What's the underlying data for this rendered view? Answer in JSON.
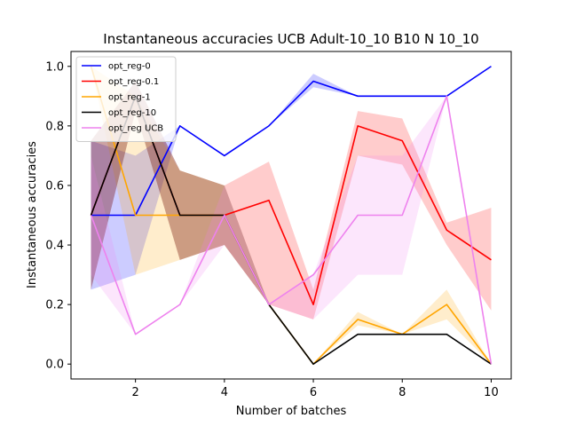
{
  "chart_data": {
    "type": "line",
    "title": "Instantaneous accuracies UCB Adult-10_10 B10 N 10_10",
    "xlabel": "Number of batches",
    "ylabel": "Instantaneous accuracies",
    "xlim": [
      0.55,
      10.45
    ],
    "ylim": [
      -0.05,
      1.05
    ],
    "xticks": [
      2,
      4,
      6,
      8,
      10
    ],
    "yticks": [
      0.0,
      0.2,
      0.4,
      0.6,
      0.8,
      1.0
    ],
    "xtick_labels": [
      "2",
      "4",
      "6",
      "8",
      "10"
    ],
    "ytick_labels": [
      "0.0",
      "0.2",
      "0.4",
      "0.6",
      "0.8",
      "1.0"
    ],
    "grid": false,
    "legend_position": "top-left",
    "x": [
      1,
      2,
      3,
      4,
      5,
      6,
      7,
      8,
      9,
      10
    ],
    "series": [
      {
        "name": "opt_reg-0",
        "color": "#0000ff",
        "values": [
          0.5,
          0.5,
          0.8,
          0.7,
          0.8,
          0.95,
          0.9,
          0.9,
          0.9,
          1.0
        ],
        "lower": [
          0.25,
          0.3,
          0.8,
          0.7,
          0.8,
          0.93,
          0.9,
          0.9,
          0.9,
          1.0
        ],
        "upper": [
          0.75,
          0.7,
          0.8,
          0.7,
          0.8,
          0.975,
          0.9,
          0.9,
          0.9,
          1.0
        ]
      },
      {
        "name": "opt_reg-0.1",
        "color": "#ff0000",
        "values": [
          0.5,
          0.9,
          0.5,
          0.5,
          0.55,
          0.2,
          0.8,
          0.75,
          0.45,
          0.35
        ],
        "lower": [
          0.25,
          0.85,
          0.35,
          0.4,
          0.2,
          0.15,
          0.7,
          0.67,
          0.4,
          0.18
        ],
        "upper": [
          0.75,
          0.95,
          0.65,
          0.6,
          0.68,
          0.25,
          0.85,
          0.825,
          0.475,
          0.525
        ]
      },
      {
        "name": "opt_reg-1",
        "color": "#ffa500",
        "values": [
          1.0,
          0.5,
          0.5,
          0.5,
          0.2,
          0.0,
          0.15,
          0.1,
          0.2,
          0.0
        ],
        "lower": [
          1.0,
          0.3,
          0.35,
          0.4,
          0.2,
          0.0,
          0.13,
          0.1,
          0.15,
          0.0
        ],
        "upper": [
          1.0,
          0.9,
          0.65,
          0.6,
          0.2,
          0.0,
          0.175,
          0.1,
          0.25,
          0.0
        ]
      },
      {
        "name": "opt_reg-10",
        "color": "#000000",
        "values": [
          0.5,
          0.9,
          0.5,
          0.5,
          0.2,
          0.0,
          0.1,
          0.1,
          0.1,
          0.0
        ],
        "lower": [
          0.25,
          0.85,
          0.35,
          0.4,
          0.2,
          0.0,
          0.1,
          0.1,
          0.1,
          0.0
        ],
        "upper": [
          0.75,
          0.95,
          0.65,
          0.6,
          0.2,
          0.0,
          0.1,
          0.1,
          0.1,
          0.0
        ]
      },
      {
        "name": "opt_reg UCB",
        "color": "#ee82ee",
        "values": [
          0.5,
          0.1,
          0.2,
          0.5,
          0.2,
          0.3,
          0.5,
          0.5,
          0.9,
          0.0
        ],
        "lower": [
          0.3,
          0.1,
          0.2,
          0.4,
          0.2,
          0.15,
          0.3,
          0.3,
          0.9,
          0.0
        ],
        "upper": [
          0.7,
          0.1,
          0.2,
          0.6,
          0.2,
          0.3,
          0.7,
          0.7,
          0.9,
          0.0
        ]
      }
    ]
  }
}
